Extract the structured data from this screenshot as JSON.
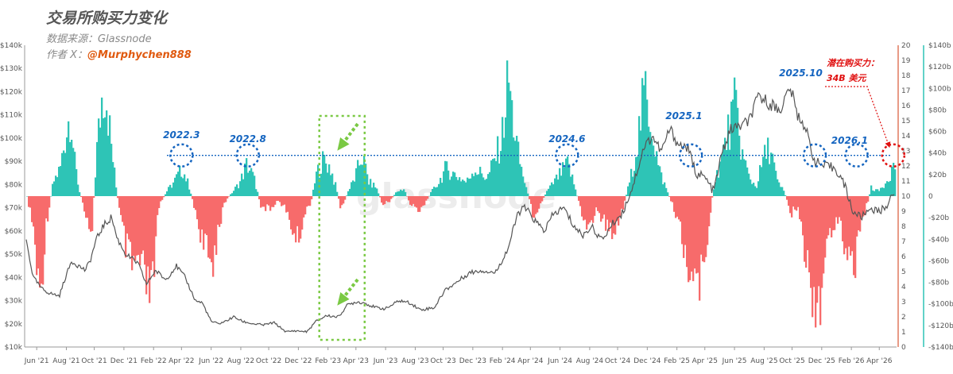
{
  "header": {
    "title": "交易所购买力变化",
    "source": "数据来源：Glassnode",
    "author_prefix": "作者 X：",
    "author_handle": "@Murphychen888"
  },
  "watermark": "glassnode",
  "colors": {
    "positive": "#2ec4b6",
    "negative": "#f76b6b",
    "price": "#555555",
    "annotation_blue": "#1565c0",
    "annotation_red": "#e01010",
    "highlight_box": "#7ac943",
    "right_axis_line": "#e07a5f",
    "right2_axis_line": "#2ec4b6"
  },
  "chart_data": {
    "type": "bar",
    "x_tick_labels": [
      "Jun '21",
      "Aug '21",
      "Oct '21",
      "Dec '21",
      "Feb '22",
      "Apr '22",
      "Jun '22",
      "Aug '22",
      "Oct '22",
      "Dec '22",
      "Feb '23",
      "Apr '23",
      "Jun '23",
      "Aug '23",
      "Oct '23",
      "Dec '23",
      "Feb '24",
      "Apr '24",
      "Jun '24",
      "Aug '24",
      "Oct '24",
      "Dec '24",
      "Feb '25",
      "Apr '25",
      "Jun '25",
      "Aug '25",
      "Oct '25",
      "Dec '25",
      "Feb '26",
      "Apr '26"
    ],
    "y_left": {
      "ticks": [
        "$10k",
        "$20k",
        "$30k",
        "$40k",
        "$50k",
        "$60k",
        "$70k",
        "$80k",
        "$90k",
        "$100k",
        "$110k",
        "$120k",
        "$130k",
        "$140k"
      ],
      "range": [
        10000,
        140000
      ]
    },
    "y_right": {
      "ticks": [
        "0",
        "1",
        "2",
        "3",
        "4",
        "5",
        "6",
        "7",
        "8",
        "9",
        "10",
        "11",
        "12",
        "13",
        "14",
        "15",
        "16",
        "17",
        "18",
        "19",
        "20"
      ],
      "range": [
        0,
        20
      ]
    },
    "y_right2": {
      "ticks": [
        "-$140b",
        "-$120b",
        "-$100b",
        "-$80b",
        "-$60b",
        "-$40b",
        "-$20b",
        "0",
        "$20b",
        "$40b",
        "$60b",
        "$80b",
        "$100b",
        "$120b",
        "$140b"
      ],
      "range": [
        -140,
        140
      ]
    },
    "series": [
      {
        "kind": "bar",
        "unit": "$b",
        "x_range": [
          2021.36,
          2026.34
        ],
        "keypoints": [
          [
            2021.36,
            0
          ],
          [
            2021.4,
            -40
          ],
          [
            2021.43,
            -120
          ],
          [
            2021.47,
            -30
          ],
          [
            2021.51,
            15
          ],
          [
            2021.55,
            30
          ],
          [
            2021.58,
            65
          ],
          [
            2021.61,
            95
          ],
          [
            2021.63,
            40
          ],
          [
            2021.66,
            5
          ],
          [
            2021.7,
            -20
          ],
          [
            2021.73,
            -40
          ],
          [
            2021.76,
            50
          ],
          [
            2021.79,
            110
          ],
          [
            2021.81,
            120
          ],
          [
            2021.84,
            60
          ],
          [
            2021.87,
            10
          ],
          [
            2021.9,
            -30
          ],
          [
            2021.93,
            -60
          ],
          [
            2021.97,
            -80
          ],
          [
            2022.0,
            -70
          ],
          [
            2022.04,
            -100
          ],
          [
            2022.08,
            -105
          ],
          [
            2022.1,
            -40
          ],
          [
            2022.12,
            -10
          ],
          [
            2022.16,
            5
          ],
          [
            2022.2,
            15
          ],
          [
            2022.25,
            30
          ],
          [
            2022.29,
            10
          ],
          [
            2022.33,
            -20
          ],
          [
            2022.38,
            -60
          ],
          [
            2022.42,
            -75
          ],
          [
            2022.46,
            -30
          ],
          [
            2022.5,
            -5
          ],
          [
            2022.54,
            5
          ],
          [
            2022.58,
            15
          ],
          [
            2022.62,
            35
          ],
          [
            2022.66,
            20
          ],
          [
            2022.7,
            -10
          ],
          [
            2022.75,
            -15
          ],
          [
            2022.79,
            -5
          ],
          [
            2022.83,
            -10
          ],
          [
            2022.87,
            -30
          ],
          [
            2022.91,
            -50
          ],
          [
            2022.95,
            -20
          ],
          [
            2022.99,
            -5
          ],
          [
            2023.02,
            25
          ],
          [
            2023.06,
            40
          ],
          [
            2023.1,
            30
          ],
          [
            2023.13,
            10
          ],
          [
            2023.16,
            -15
          ],
          [
            2023.2,
            5
          ],
          [
            2023.24,
            20
          ],
          [
            2023.28,
            45
          ],
          [
            2023.32,
            15
          ],
          [
            2023.36,
            10
          ],
          [
            2023.4,
            -10
          ],
          [
            2023.44,
            -5
          ],
          [
            2023.48,
            5
          ],
          [
            2023.52,
            8
          ],
          [
            2023.56,
            -10
          ],
          [
            2023.6,
            -15
          ],
          [
            2023.64,
            -8
          ],
          [
            2023.68,
            5
          ],
          [
            2023.72,
            15
          ],
          [
            2023.76,
            30
          ],
          [
            2023.8,
            25
          ],
          [
            2023.84,
            20
          ],
          [
            2023.88,
            15
          ],
          [
            2023.92,
            30
          ],
          [
            2023.96,
            25
          ],
          [
            2024.0,
            20
          ],
          [
            2024.04,
            40
          ],
          [
            2024.08,
            60
          ],
          [
            2024.12,
            130
          ],
          [
            2024.14,
            90
          ],
          [
            2024.18,
            40
          ],
          [
            2024.22,
            10
          ],
          [
            2024.26,
            -20
          ],
          [
            2024.3,
            -10
          ],
          [
            2024.34,
            5
          ],
          [
            2024.38,
            15
          ],
          [
            2024.42,
            25
          ],
          [
            2024.46,
            35
          ],
          [
            2024.5,
            10
          ],
          [
            2024.54,
            -20
          ],
          [
            2024.58,
            -35
          ],
          [
            2024.62,
            -15
          ],
          [
            2024.66,
            -25
          ],
          [
            2024.7,
            -40
          ],
          [
            2024.74,
            -30
          ],
          [
            2024.78,
            -10
          ],
          [
            2024.82,
            20
          ],
          [
            2024.86,
            60
          ],
          [
            2024.9,
            115
          ],
          [
            2024.94,
            80
          ],
          [
            2024.98,
            30
          ],
          [
            2025.02,
            10
          ],
          [
            2025.06,
            -10
          ],
          [
            2025.1,
            -30
          ],
          [
            2025.14,
            -70
          ],
          [
            2025.18,
            -85
          ],
          [
            2025.22,
            -100
          ],
          [
            2025.26,
            -40
          ],
          [
            2025.3,
            15
          ],
          [
            2025.34,
            40
          ],
          [
            2025.38,
            70
          ],
          [
            2025.42,
            100
          ],
          [
            2025.46,
            45
          ],
          [
            2025.5,
            20
          ],
          [
            2025.54,
            10
          ],
          [
            2025.58,
            40
          ],
          [
            2025.62,
            55
          ],
          [
            2025.66,
            15
          ],
          [
            2025.7,
            5
          ],
          [
            2025.74,
            -20
          ],
          [
            2025.78,
            -10
          ],
          [
            2025.82,
            -60
          ],
          [
            2025.86,
            -100
          ],
          [
            2025.9,
            -115
          ],
          [
            2025.94,
            -60
          ],
          [
            2025.98,
            -30
          ],
          [
            2026.02,
            -20
          ],
          [
            2026.06,
            -70
          ],
          [
            2026.1,
            -90
          ],
          [
            2026.12,
            -40
          ],
          [
            2026.16,
            -20
          ],
          [
            2026.2,
            10
          ],
          [
            2026.24,
            5
          ],
          [
            2026.28,
            15
          ],
          [
            2026.32,
            30
          ],
          [
            2026.34,
            34
          ]
        ]
      },
      {
        "kind": "line",
        "unit": "USD",
        "keypoints": [
          [
            2021.36,
            56000
          ],
          [
            2021.4,
            40000
          ],
          [
            2021.45,
            35000
          ],
          [
            2021.5,
            33000
          ],
          [
            2021.55,
            32000
          ],
          [
            2021.58,
            39000
          ],
          [
            2021.62,
            47000
          ],
          [
            2021.66,
            45000
          ],
          [
            2021.7,
            43000
          ],
          [
            2021.73,
            48000
          ],
          [
            2021.76,
            56000
          ],
          [
            2021.8,
            62000
          ],
          [
            2021.85,
            66000
          ],
          [
            2021.88,
            57000
          ],
          [
            2021.93,
            50000
          ],
          [
            2022.0,
            46000
          ],
          [
            2022.05,
            37000
          ],
          [
            2022.1,
            43000
          ],
          [
            2022.16,
            39000
          ],
          [
            2022.22,
            45000
          ],
          [
            2022.27,
            40000
          ],
          [
            2022.33,
            30000
          ],
          [
            2022.37,
            29000
          ],
          [
            2022.42,
            21000
          ],
          [
            2022.46,
            20000
          ],
          [
            2022.5,
            21000
          ],
          [
            2022.55,
            23000
          ],
          [
            2022.6,
            21000
          ],
          [
            2022.66,
            20000
          ],
          [
            2022.72,
            19500
          ],
          [
            2022.78,
            20500
          ],
          [
            2022.85,
            16500
          ],
          [
            2022.9,
            17000
          ],
          [
            2022.97,
            16600
          ],
          [
            2023.02,
            21000
          ],
          [
            2023.08,
            23500
          ],
          [
            2023.15,
            23000
          ],
          [
            2023.2,
            28000
          ],
          [
            2023.25,
            29500
          ],
          [
            2023.3,
            29000
          ],
          [
            2023.36,
            27000
          ],
          [
            2023.42,
            26500
          ],
          [
            2023.5,
            30000
          ],
          [
            2023.56,
            29000
          ],
          [
            2023.62,
            26000
          ],
          [
            2023.7,
            27000
          ],
          [
            2023.76,
            34500
          ],
          [
            2023.82,
            37500
          ],
          [
            2023.9,
            42000
          ],
          [
            2023.97,
            43000
          ],
          [
            2024.05,
            42000
          ],
          [
            2024.12,
            52000
          ],
          [
            2024.18,
            68000
          ],
          [
            2024.22,
            70000
          ],
          [
            2024.28,
            64000
          ],
          [
            2024.33,
            60000
          ],
          [
            2024.38,
            67000
          ],
          [
            2024.44,
            70000
          ],
          [
            2024.5,
            62000
          ],
          [
            2024.55,
            58000
          ],
          [
            2024.6,
            62000
          ],
          [
            2024.66,
            56000
          ],
          [
            2024.72,
            63000
          ],
          [
            2024.78,
            68000
          ],
          [
            2024.84,
            80000
          ],
          [
            2024.9,
            96000
          ],
          [
            2024.95,
            101000
          ],
          [
            2025.0,
            94000
          ],
          [
            2025.05,
            104000
          ],
          [
            2025.1,
            97000
          ],
          [
            2025.15,
            96000
          ],
          [
            2025.2,
            85000
          ],
          [
            2025.25,
            83000
          ],
          [
            2025.3,
            77000
          ],
          [
            2025.35,
            94000
          ],
          [
            2025.4,
            104000
          ],
          [
            2025.45,
            105000
          ],
          [
            2025.5,
            107000
          ],
          [
            2025.56,
            118000
          ],
          [
            2025.62,
            115000
          ],
          [
            2025.68,
            112000
          ],
          [
            2025.74,
            122000
          ],
          [
            2025.78,
            110000
          ],
          [
            2025.82,
            106000
          ],
          [
            2025.88,
            90000
          ],
          [
            2025.93,
            88000
          ],
          [
            2026.0,
            87000
          ],
          [
            2026.05,
            80000
          ],
          [
            2026.1,
            68000
          ],
          [
            2026.15,
            66000
          ],
          [
            2026.2,
            70000
          ],
          [
            2026.25,
            68000
          ],
          [
            2026.3,
            72000
          ],
          [
            2026.34,
            76000
          ]
        ]
      }
    ],
    "reference_line_right_axis": 12.7,
    "annotations": [
      "2022.3",
      "2022.8",
      "2024.6",
      "2025.1",
      "2025.10",
      "2026.1",
      "潜在购买力：",
      "34B 美元"
    ],
    "highlight_window": {
      "start": "Feb '23",
      "end": "May '23"
    }
  }
}
